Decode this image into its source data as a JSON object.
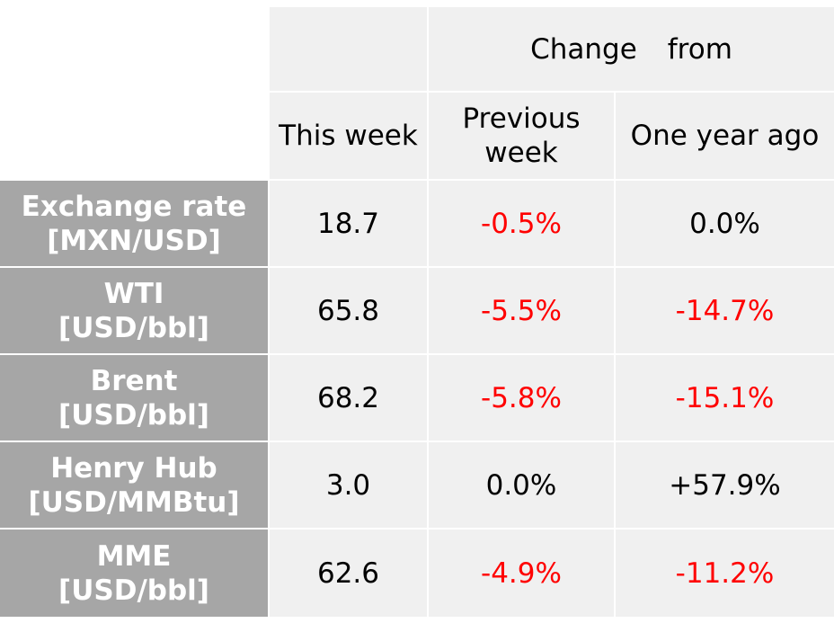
{
  "header": {
    "change_label_1": "Change",
    "change_label_2": "from",
    "this_week": "This week",
    "previous_week": "Previous week",
    "one_year_ago": "One year ago"
  },
  "rows": [
    {
      "label_line1": "Exchange rate",
      "label_line2": "[MXN/USD]",
      "this_week": "18.7",
      "prev_week": "-0.5%",
      "prev_week_status": "negative",
      "year_ago": "0.0%",
      "year_ago_status": "neutral"
    },
    {
      "label_line1": "WTI",
      "label_line2": "[USD/bbl]",
      "this_week": "65.8",
      "prev_week": "-5.5%",
      "prev_week_status": "negative",
      "year_ago": "-14.7%",
      "year_ago_status": "negative"
    },
    {
      "label_line1": "Brent",
      "label_line2": "[USD/bbl]",
      "this_week": "68.2",
      "prev_week": "-5.8%",
      "prev_week_status": "negative",
      "year_ago": "-15.1%",
      "year_ago_status": "negative"
    },
    {
      "label_line1": "Henry Hub",
      "label_line2": "[USD/MMBtu]",
      "this_week": "3.0",
      "prev_week": "0.0%",
      "prev_week_status": "neutral",
      "year_ago": "+57.9%",
      "year_ago_status": "neutral"
    },
    {
      "label_line1": "MME",
      "label_line2": "[USD/bbl]",
      "this_week": "62.6",
      "prev_week": "-4.9%",
      "prev_week_status": "negative",
      "year_ago": "-11.2%",
      "year_ago_status": "negative"
    }
  ],
  "colors": {
    "row_header_bg": "#a6a6a6",
    "cell_bg": "#f0f0f0",
    "negative": "#ff0000",
    "neutral": "#000000"
  }
}
